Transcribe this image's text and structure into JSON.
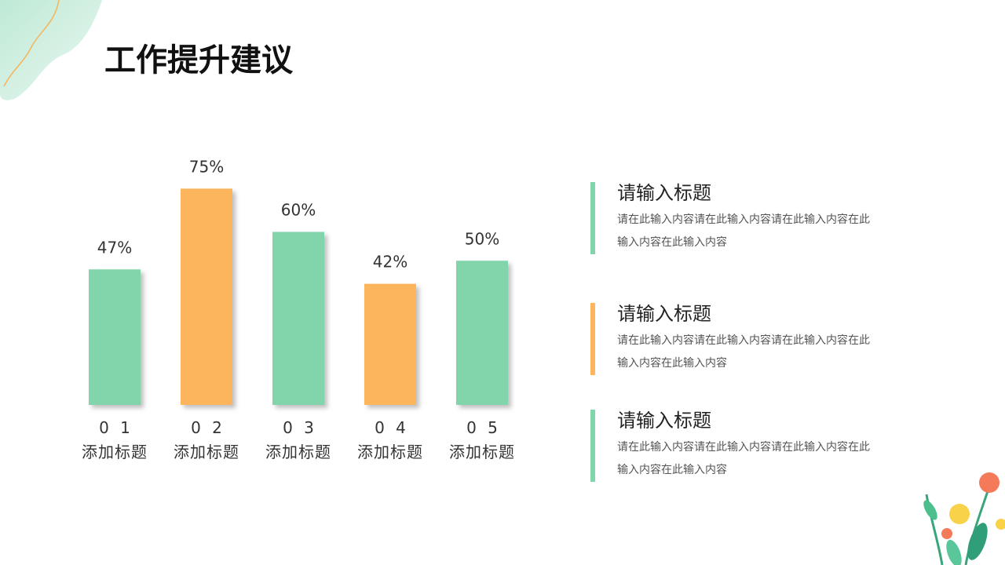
{
  "chart_data": {
    "type": "bar",
    "title": "工作提升建议",
    "categories": [
      "0 1",
      "0 2",
      "0 3",
      "0 4",
      "0 5"
    ],
    "category_subtitles": [
      "添加标题",
      "添加标题",
      "添加标题",
      "添加标题",
      "添加标题"
    ],
    "values": [
      47,
      75,
      60,
      42,
      50
    ],
    "value_labels": [
      "47%",
      "75%",
      "60%",
      "42%",
      "50%"
    ],
    "colors": [
      "#82d4ab",
      "#fdb55d",
      "#82d4ab",
      "#fdb55d",
      "#82d4ab"
    ],
    "ylim": [
      0,
      80
    ]
  },
  "notes": [
    {
      "title": "请输入标题",
      "text": "请在此输入内容请在此输入内容请在此输入内容在此输入内容在此输入内容",
      "color": "#82d4ab"
    },
    {
      "title": "请输入标题",
      "text": "请在此输入内容请在此输入内容请在此输入内容在此输入内容在此输入内容",
      "color": "#fdb55d"
    },
    {
      "title": "请输入标题",
      "text": "请在此输入内容请在此输入内容请在此输入内容在此输入内容在此输入内容",
      "color": "#82d4ab"
    }
  ]
}
